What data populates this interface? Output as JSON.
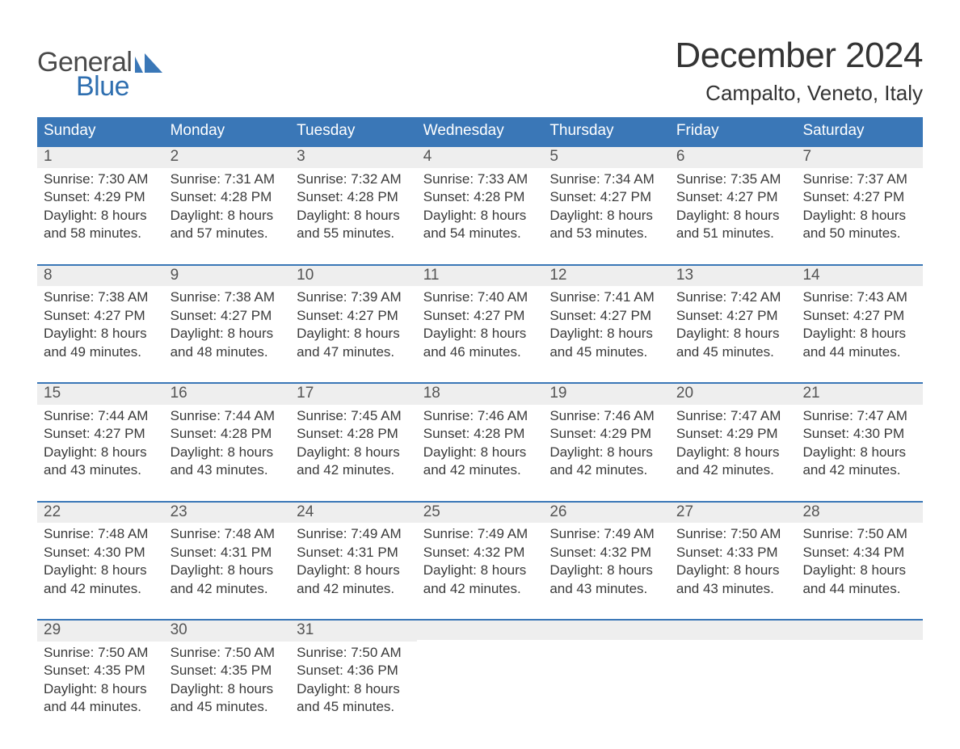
{
  "logo": {
    "text_top": "General",
    "text_bottom": "Blue",
    "gray_color": "#4a4a4a",
    "blue_color": "#2f6fb0",
    "shape_color": "#3a77b7"
  },
  "title": "December 2024",
  "location": "Campalto, Veneto, Italy",
  "colors": {
    "header_bg": "#3a77b7",
    "header_text": "#ffffff",
    "daynum_bg": "#eeeeee",
    "week_border": "#3a77b7",
    "body_text": "#3a3a3a",
    "page_bg": "#ffffff"
  },
  "fonts": {
    "month_title_size_pt": 33,
    "location_size_pt": 20,
    "weekday_size_pt": 14,
    "daynum_size_pt": 14,
    "detail_size_pt": 13
  },
  "weekdays": [
    "Sunday",
    "Monday",
    "Tuesday",
    "Wednesday",
    "Thursday",
    "Friday",
    "Saturday"
  ],
  "weeks": [
    [
      {
        "n": "1",
        "sunrise": "Sunrise: 7:30 AM",
        "sunset": "Sunset: 4:29 PM",
        "d1": "Daylight: 8 hours",
        "d2": "and 58 minutes."
      },
      {
        "n": "2",
        "sunrise": "Sunrise: 7:31 AM",
        "sunset": "Sunset: 4:28 PM",
        "d1": "Daylight: 8 hours",
        "d2": "and 57 minutes."
      },
      {
        "n": "3",
        "sunrise": "Sunrise: 7:32 AM",
        "sunset": "Sunset: 4:28 PM",
        "d1": "Daylight: 8 hours",
        "d2": "and 55 minutes."
      },
      {
        "n": "4",
        "sunrise": "Sunrise: 7:33 AM",
        "sunset": "Sunset: 4:28 PM",
        "d1": "Daylight: 8 hours",
        "d2": "and 54 minutes."
      },
      {
        "n": "5",
        "sunrise": "Sunrise: 7:34 AM",
        "sunset": "Sunset: 4:27 PM",
        "d1": "Daylight: 8 hours",
        "d2": "and 53 minutes."
      },
      {
        "n": "6",
        "sunrise": "Sunrise: 7:35 AM",
        "sunset": "Sunset: 4:27 PM",
        "d1": "Daylight: 8 hours",
        "d2": "and 51 minutes."
      },
      {
        "n": "7",
        "sunrise": "Sunrise: 7:37 AM",
        "sunset": "Sunset: 4:27 PM",
        "d1": "Daylight: 8 hours",
        "d2": "and 50 minutes."
      }
    ],
    [
      {
        "n": "8",
        "sunrise": "Sunrise: 7:38 AM",
        "sunset": "Sunset: 4:27 PM",
        "d1": "Daylight: 8 hours",
        "d2": "and 49 minutes."
      },
      {
        "n": "9",
        "sunrise": "Sunrise: 7:38 AM",
        "sunset": "Sunset: 4:27 PM",
        "d1": "Daylight: 8 hours",
        "d2": "and 48 minutes."
      },
      {
        "n": "10",
        "sunrise": "Sunrise: 7:39 AM",
        "sunset": "Sunset: 4:27 PM",
        "d1": "Daylight: 8 hours",
        "d2": "and 47 minutes."
      },
      {
        "n": "11",
        "sunrise": "Sunrise: 7:40 AM",
        "sunset": "Sunset: 4:27 PM",
        "d1": "Daylight: 8 hours",
        "d2": "and 46 minutes."
      },
      {
        "n": "12",
        "sunrise": "Sunrise: 7:41 AM",
        "sunset": "Sunset: 4:27 PM",
        "d1": "Daylight: 8 hours",
        "d2": "and 45 minutes."
      },
      {
        "n": "13",
        "sunrise": "Sunrise: 7:42 AM",
        "sunset": "Sunset: 4:27 PM",
        "d1": "Daylight: 8 hours",
        "d2": "and 45 minutes."
      },
      {
        "n": "14",
        "sunrise": "Sunrise: 7:43 AM",
        "sunset": "Sunset: 4:27 PM",
        "d1": "Daylight: 8 hours",
        "d2": "and 44 minutes."
      }
    ],
    [
      {
        "n": "15",
        "sunrise": "Sunrise: 7:44 AM",
        "sunset": "Sunset: 4:27 PM",
        "d1": "Daylight: 8 hours",
        "d2": "and 43 minutes."
      },
      {
        "n": "16",
        "sunrise": "Sunrise: 7:44 AM",
        "sunset": "Sunset: 4:28 PM",
        "d1": "Daylight: 8 hours",
        "d2": "and 43 minutes."
      },
      {
        "n": "17",
        "sunrise": "Sunrise: 7:45 AM",
        "sunset": "Sunset: 4:28 PM",
        "d1": "Daylight: 8 hours",
        "d2": "and 42 minutes."
      },
      {
        "n": "18",
        "sunrise": "Sunrise: 7:46 AM",
        "sunset": "Sunset: 4:28 PM",
        "d1": "Daylight: 8 hours",
        "d2": "and 42 minutes."
      },
      {
        "n": "19",
        "sunrise": "Sunrise: 7:46 AM",
        "sunset": "Sunset: 4:29 PM",
        "d1": "Daylight: 8 hours",
        "d2": "and 42 minutes."
      },
      {
        "n": "20",
        "sunrise": "Sunrise: 7:47 AM",
        "sunset": "Sunset: 4:29 PM",
        "d1": "Daylight: 8 hours",
        "d2": "and 42 minutes."
      },
      {
        "n": "21",
        "sunrise": "Sunrise: 7:47 AM",
        "sunset": "Sunset: 4:30 PM",
        "d1": "Daylight: 8 hours",
        "d2": "and 42 minutes."
      }
    ],
    [
      {
        "n": "22",
        "sunrise": "Sunrise: 7:48 AM",
        "sunset": "Sunset: 4:30 PM",
        "d1": "Daylight: 8 hours",
        "d2": "and 42 minutes."
      },
      {
        "n": "23",
        "sunrise": "Sunrise: 7:48 AM",
        "sunset": "Sunset: 4:31 PM",
        "d1": "Daylight: 8 hours",
        "d2": "and 42 minutes."
      },
      {
        "n": "24",
        "sunrise": "Sunrise: 7:49 AM",
        "sunset": "Sunset: 4:31 PM",
        "d1": "Daylight: 8 hours",
        "d2": "and 42 minutes."
      },
      {
        "n": "25",
        "sunrise": "Sunrise: 7:49 AM",
        "sunset": "Sunset: 4:32 PM",
        "d1": "Daylight: 8 hours",
        "d2": "and 42 minutes."
      },
      {
        "n": "26",
        "sunrise": "Sunrise: 7:49 AM",
        "sunset": "Sunset: 4:32 PM",
        "d1": "Daylight: 8 hours",
        "d2": "and 43 minutes."
      },
      {
        "n": "27",
        "sunrise": "Sunrise: 7:50 AM",
        "sunset": "Sunset: 4:33 PM",
        "d1": "Daylight: 8 hours",
        "d2": "and 43 minutes."
      },
      {
        "n": "28",
        "sunrise": "Sunrise: 7:50 AM",
        "sunset": "Sunset: 4:34 PM",
        "d1": "Daylight: 8 hours",
        "d2": "and 44 minutes."
      }
    ],
    [
      {
        "n": "29",
        "sunrise": "Sunrise: 7:50 AM",
        "sunset": "Sunset: 4:35 PM",
        "d1": "Daylight: 8 hours",
        "d2": "and 44 minutes."
      },
      {
        "n": "30",
        "sunrise": "Sunrise: 7:50 AM",
        "sunset": "Sunset: 4:35 PM",
        "d1": "Daylight: 8 hours",
        "d2": "and 45 minutes."
      },
      {
        "n": "31",
        "sunrise": "Sunrise: 7:50 AM",
        "sunset": "Sunset: 4:36 PM",
        "d1": "Daylight: 8 hours",
        "d2": "and 45 minutes."
      },
      {
        "n": "",
        "sunrise": "",
        "sunset": "",
        "d1": "",
        "d2": ""
      },
      {
        "n": "",
        "sunrise": "",
        "sunset": "",
        "d1": "",
        "d2": ""
      },
      {
        "n": "",
        "sunrise": "",
        "sunset": "",
        "d1": "",
        "d2": ""
      },
      {
        "n": "",
        "sunrise": "",
        "sunset": "",
        "d1": "",
        "d2": ""
      }
    ]
  ]
}
